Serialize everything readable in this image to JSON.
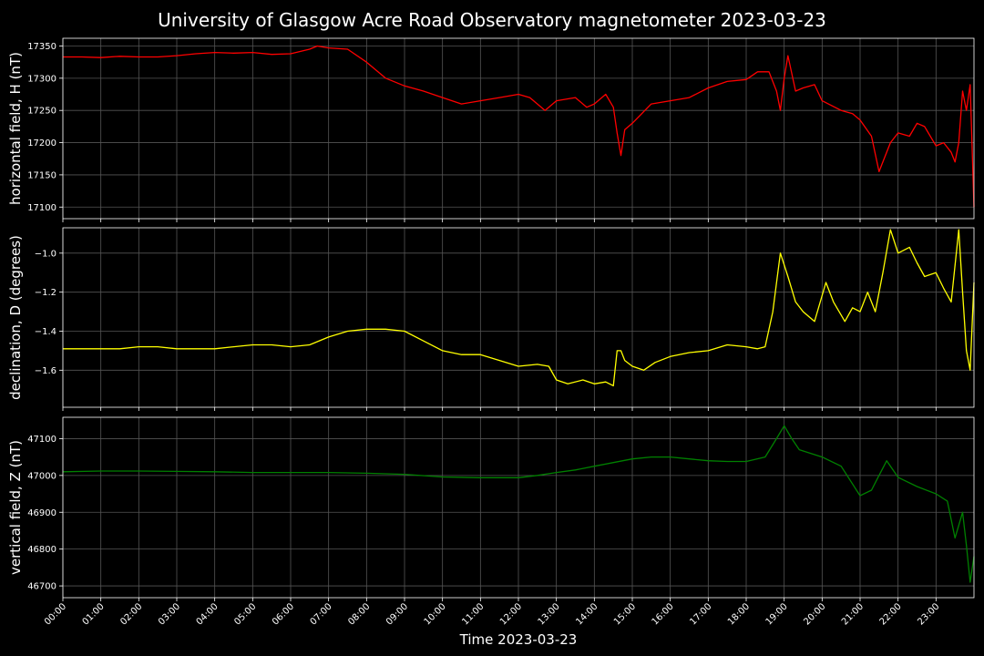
{
  "chart_data": {
    "type": "line",
    "title": "University of Glasgow Acre Road Observatory magnetometer 2023-03-23",
    "xlabel": "Time 2023-03-23",
    "x_ticks": [
      "00:00",
      "01:00",
      "02:00",
      "03:00",
      "04:00",
      "05:00",
      "06:00",
      "07:00",
      "08:00",
      "09:00",
      "10:00",
      "11:00",
      "12:00",
      "13:00",
      "14:00",
      "15:00",
      "16:00",
      "17:00",
      "18:00",
      "19:00",
      "20:00",
      "21:00",
      "22:00",
      "23:00"
    ],
    "x_range_hours": [
      0,
      24
    ],
    "grid": true,
    "panels": [
      {
        "ylabel": "horizontal field, H (nT)",
        "color": "#ff0000",
        "ylim": [
          17082,
          17362
        ],
        "y_ticks": [
          17100,
          17150,
          17200,
          17250,
          17300,
          17350
        ],
        "y_tick_labels": [
          "17100",
          "17150",
          "17200",
          "17250",
          "17300",
          "17350"
        ],
        "series": [
          {
            "x": [
              0,
              0.5,
              1,
              1.5,
              2,
              2.5,
              3,
              3.5,
              4,
              4.5,
              5,
              5.5,
              6,
              6.5,
              6.7,
              7,
              7.5,
              8,
              8.5,
              9,
              9.5,
              10,
              10.5,
              11,
              11.5,
              12,
              12.3,
              12.7,
              13,
              13.5,
              13.8,
              14,
              14.3,
              14.5,
              14.6,
              14.7,
              14.8,
              15,
              15.5,
              16,
              16.5,
              17,
              17.5,
              18,
              18.3,
              18.6,
              18.8,
              18.9,
              19,
              19.1,
              19.3,
              19.5,
              19.8,
              20,
              20.5,
              20.8,
              21,
              21.3,
              21.5,
              21.8,
              22,
              22.3,
              22.5,
              22.7,
              23,
              23.2,
              23.4,
              23.5,
              23.6,
              23.7,
              23.8,
              23.9,
              24
            ],
            "y": [
              17333,
              17333,
              17332,
              17334,
              17333,
              17333,
              17335,
              17338,
              17340,
              17339,
              17340,
              17337,
              17338,
              17345,
              17350,
              17347,
              17345,
              17325,
              17300,
              17288,
              17280,
              17270,
              17260,
              17265,
              17270,
              17275,
              17270,
              17250,
              17265,
              17270,
              17255,
              17260,
              17275,
              17255,
              17215,
              17180,
              17220,
              17230,
              17260,
              17265,
              17270,
              17285,
              17295,
              17298,
              17310,
              17310,
              17280,
              17250,
              17300,
              17335,
              17280,
              17285,
              17290,
              17265,
              17250,
              17245,
              17235,
              17210,
              17155,
              17200,
              17215,
              17210,
              17230,
              17225,
              17195,
              17200,
              17185,
              17170,
              17200,
              17280,
              17250,
              17290,
              17100
            ]
          }
        ]
      },
      {
        "ylabel": "declination, D (degrees)",
        "color": "#ffff00",
        "ylim": [
          -1.79,
          -0.87
        ],
        "y_ticks": [
          -1.6,
          -1.4,
          -1.2,
          -1.0
        ],
        "y_tick_labels": [
          "−1.6",
          "−1.4",
          "−1.2",
          "−1.0"
        ],
        "series": [
          {
            "x": [
              0,
              0.5,
              1,
              1.5,
              2,
              2.5,
              3,
              3.5,
              4,
              4.5,
              5,
              5.5,
              6,
              6.5,
              7,
              7.5,
              8,
              8.5,
              9,
              9.5,
              10,
              10.5,
              11,
              11.5,
              12,
              12.5,
              12.8,
              13,
              13.3,
              13.7,
              14,
              14.3,
              14.5,
              14.6,
              14.7,
              14.8,
              15,
              15.3,
              15.6,
              16,
              16.5,
              17,
              17.5,
              18,
              18.3,
              18.5,
              18.7,
              18.9,
              19.1,
              19.3,
              19.5,
              19.8,
              20.1,
              20.3,
              20.6,
              20.8,
              21,
              21.2,
              21.4,
              21.6,
              21.8,
              22,
              22.3,
              22.5,
              22.7,
              23,
              23.2,
              23.4,
              23.6,
              23.7,
              23.8,
              23.9,
              24
            ],
            "y": [
              -1.49,
              -1.49,
              -1.49,
              -1.49,
              -1.48,
              -1.48,
              -1.49,
              -1.49,
              -1.49,
              -1.48,
              -1.47,
              -1.47,
              -1.48,
              -1.47,
              -1.43,
              -1.4,
              -1.39,
              -1.39,
              -1.4,
              -1.45,
              -1.5,
              -1.52,
              -1.52,
              -1.55,
              -1.58,
              -1.57,
              -1.58,
              -1.65,
              -1.67,
              -1.65,
              -1.67,
              -1.66,
              -1.68,
              -1.5,
              -1.5,
              -1.55,
              -1.58,
              -1.6,
              -1.56,
              -1.53,
              -1.51,
              -1.5,
              -1.47,
              -1.48,
              -1.49,
              -1.48,
              -1.3,
              -1.0,
              -1.12,
              -1.25,
              -1.3,
              -1.35,
              -1.15,
              -1.25,
              -1.35,
              -1.28,
              -1.3,
              -1.2,
              -1.3,
              -1.1,
              -0.88,
              -1.0,
              -0.97,
              -1.05,
              -1.12,
              -1.1,
              -1.18,
              -1.25,
              -0.88,
              -1.2,
              -1.5,
              -1.6,
              -1.15
            ]
          }
        ]
      },
      {
        "ylabel": "vertical field, Z (nT)",
        "color": "#008000",
        "ylim": [
          46668,
          47158
        ],
        "y_ticks": [
          46700,
          46800,
          46900,
          47000,
          47100
        ],
        "y_tick_labels": [
          "46700",
          "46800",
          "46900",
          "47000",
          "47100"
        ],
        "series": [
          {
            "x": [
              0,
              1,
              2,
              3,
              4,
              5,
              6,
              7,
              8,
              9,
              10,
              11,
              12,
              12.5,
              13,
              13.5,
              14,
              14.5,
              15,
              15.5,
              16,
              16.5,
              17,
              17.5,
              18,
              18.5,
              18.8,
              19,
              19.2,
              19.4,
              19.7,
              20,
              20.5,
              21,
              21.3,
              21.5,
              21.7,
              22,
              22.5,
              23,
              23.3,
              23.5,
              23.7,
              23.8,
              23.9,
              24
            ],
            "y": [
              47010,
              47012,
              47012,
              47011,
              47010,
              47008,
              47008,
              47008,
              47006,
              47003,
              46996,
              46994,
              46994,
              47000,
              47008,
              47015,
              47025,
              47035,
              47045,
              47050,
              47050,
              47045,
              47040,
              47038,
              47038,
              47050,
              47100,
              47135,
              47100,
              47070,
              47060,
              47050,
              47025,
              46945,
              46960,
              47000,
              47040,
              46995,
              46970,
              46950,
              46930,
              46830,
              46900,
              46810,
              46710,
              46780
            ]
          }
        ]
      }
    ]
  }
}
